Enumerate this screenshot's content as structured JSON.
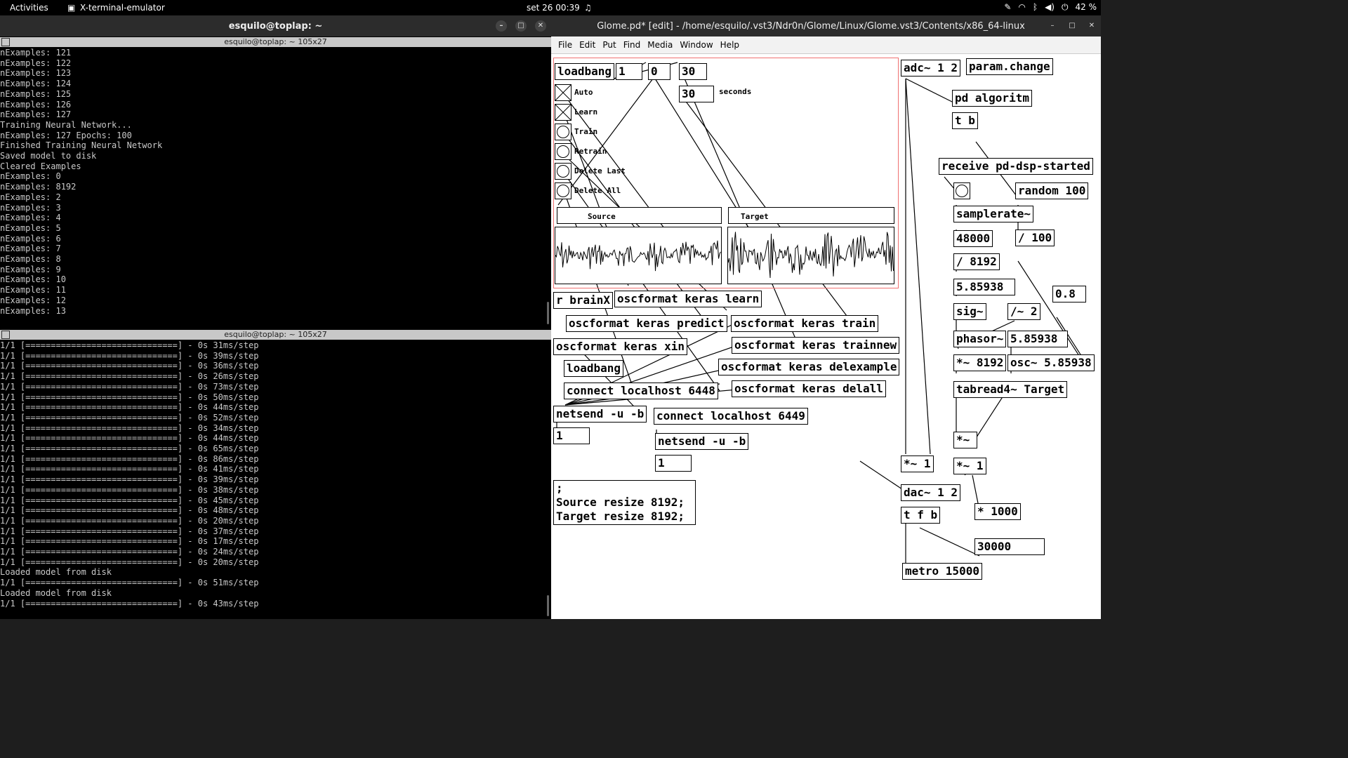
{
  "topbar": {
    "activities": "Activities",
    "app": "X-terminal-emulator",
    "clock": "set 26  00:39",
    "battery": "42 %"
  },
  "terminal": {
    "title": "esquilo@toplap: ~",
    "pane1_title": "esquilo@toplap: ~ 105x27",
    "pane2_title": "esquilo@toplap: ~ 105x27",
    "pane1_lines": [
      "nExamples: 121",
      "nExamples: 122",
      "nExamples: 123",
      "nExamples: 124",
      "nExamples: 125",
      "nExamples: 126",
      "nExamples: 127",
      "Training Neural Network...",
      "nExamples: 127 Epochs: 100",
      "Finished Training Neural Network",
      "Saved model to disk",
      "Cleared Examples",
      "nExamples: 0",
      "nExamples: 8192",
      "nExamples: 2",
      "nExamples: 3",
      "nExamples: 4",
      "nExamples: 5",
      "nExamples: 6",
      "nExamples: 7",
      "nExamples: 8",
      "nExamples: 9",
      "nExamples: 10",
      "nExamples: 11",
      "nExamples: 12",
      "nExamples: 13"
    ],
    "pane2_lines": [
      "1/1 [==============================] - 0s 31ms/step",
      "1/1 [==============================] - 0s 39ms/step",
      "1/1 [==============================] - 0s 36ms/step",
      "1/1 [==============================] - 0s 26ms/step",
      "1/1 [==============================] - 0s 73ms/step",
      "1/1 [==============================] - 0s 50ms/step",
      "1/1 [==============================] - 0s 44ms/step",
      "1/1 [==============================] - 0s 52ms/step",
      "1/1 [==============================] - 0s 34ms/step",
      "1/1 [==============================] - 0s 44ms/step",
      "1/1 [==============================] - 0s 65ms/step",
      "1/1 [==============================] - 0s 86ms/step",
      "1/1 [==============================] - 0s 41ms/step",
      "1/1 [==============================] - 0s 39ms/step",
      "1/1 [==============================] - 0s 38ms/step",
      "1/1 [==============================] - 0s 45ms/step",
      "1/1 [==============================] - 0s 48ms/step",
      "1/1 [==============================] - 0s 20ms/step",
      "1/1 [==============================] - 0s 37ms/step",
      "1/1 [==============================] - 0s 17ms/step",
      "1/1 [==============================] - 0s 24ms/step",
      "1/1 [==============================] - 0s 20ms/step",
      "Loaded model from disk",
      "1/1 [==============================] - 0s 51ms/step",
      "Loaded model from disk",
      "1/1 [==============================] - 0s 43ms/step"
    ]
  },
  "pd": {
    "title": "Glome.pd* [edit] - /home/esquilo/.vst3/Ndr0n/Glome/Linux/Glome.vst3/Contents/x86_64-linux",
    "menu": [
      "File",
      "Edit",
      "Put",
      "Find",
      "Media",
      "Window",
      "Help"
    ],
    "labels": {
      "auto": "Auto",
      "learn": "Learn",
      "train": "Train",
      "retrain": "Retrain",
      "delete_last": "Delete Last",
      "delete_all": "Delete All",
      "seconds": "seconds",
      "source": "Source",
      "target": "Target"
    },
    "objects": {
      "loadbang1": "loadbang",
      "n1": "1",
      "n0": "0",
      "n30a": "30",
      "n30b": "30",
      "adc": "adc~ 1 2",
      "param_change": "param.change",
      "pd_algoritm": "pd algoritm",
      "t_b": "t b",
      "receive": "receive pd-dsp-started",
      "random": "random 100",
      "samplerate": "samplerate~",
      "n48000": "48000",
      "div100": "/ 100",
      "div8192": "/ 8192",
      "n5_85938a": "5.85938",
      "n0_8": "0.8",
      "sig": "sig~",
      "div2": "/~ 2",
      "phasor": "phasor~",
      "n5_85938b": "5.85938",
      "mul8192": "*~ 8192",
      "osc": "osc~ 5.85938",
      "tabread": "tabread4~ Target",
      "mul_sig": "*~",
      "mul1a": "*~ 1",
      "mul1b": "*~ 1",
      "dac": "dac~ 1 2",
      "tfb": "t f b",
      "mul1000": "* 1000",
      "n30000": "30000",
      "metro": "metro 15000",
      "r_brainx": "r brainX",
      "osc_learn": "oscformat keras learn",
      "osc_predict": "oscformat keras predict",
      "osc_train": "oscformat keras train",
      "osc_xin": "oscformat keras xin",
      "osc_trainnew": "oscformat keras trainnew",
      "loadbang2": "loadbang",
      "osc_delexample": "oscformat keras delexample",
      "connect6448": "connect localhost 6448",
      "osc_delall": "oscformat keras delall",
      "netsend1": "netsend -u -b",
      "connect6449": "connect localhost 6449",
      "n1b": "1",
      "netsend2": "netsend -u -b",
      "n1c": "1",
      "msg_l1": ";",
      "msg_l2": "Source resize 8192;",
      "msg_l3": "Target resize 8192;"
    }
  }
}
